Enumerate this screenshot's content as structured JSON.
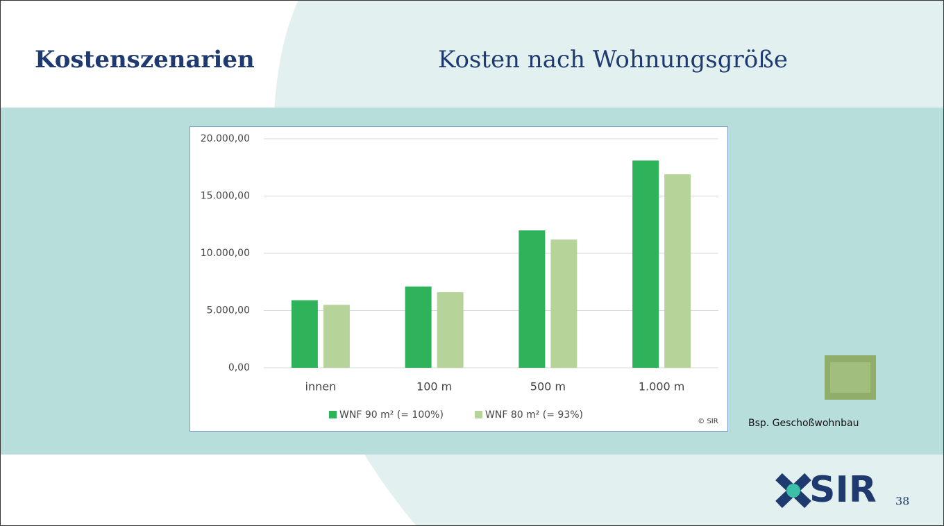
{
  "slide": {
    "title": "Kostenszenarien",
    "subtitle": "Kosten nach Wohnungsgröße",
    "caption": "Bsp. Geschoßwohnbau",
    "logo": "SIR",
    "page_number": "38"
  },
  "chart_data": {
    "type": "bar",
    "credit": "© SIR",
    "categories": [
      "innen",
      "100 m",
      "500 m",
      "1.000 m"
    ],
    "series": [
      {
        "name": "WNF 90 m² (= 100%)",
        "color": "#2eb35a",
        "values": [
          5900,
          7100,
          12000,
          18100
        ]
      },
      {
        "name": "WNF 80 m² (= 93%)",
        "color": "#b6d49a",
        "values": [
          5500,
          6600,
          11200,
          16900
        ]
      }
    ],
    "ylim": [
      0,
      20000
    ],
    "yticks": [
      {
        "value": 0,
        "label": "0,00"
      },
      {
        "value": 5000,
        "label": "5.000,00"
      },
      {
        "value": 10000,
        "label": "10.000,00"
      },
      {
        "value": 15000,
        "label": "15.000,00"
      },
      {
        "value": 20000,
        "label": "20.000,00"
      }
    ],
    "grid": true,
    "legend": "bottom"
  }
}
